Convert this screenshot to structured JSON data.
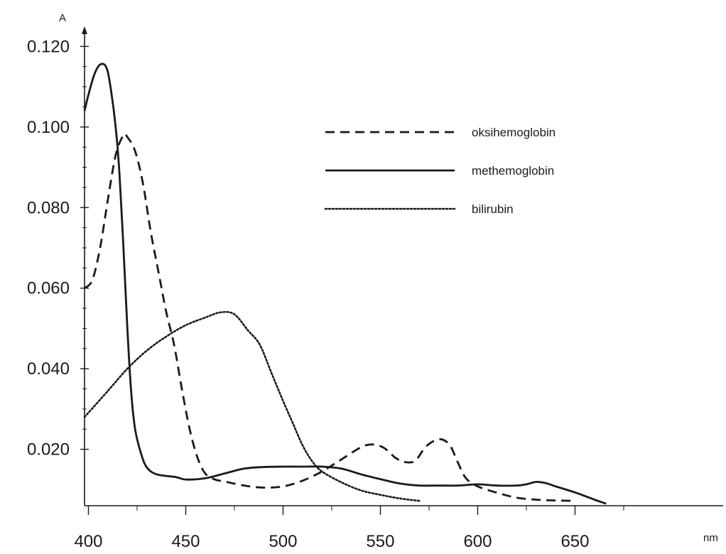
{
  "chart_data": {
    "type": "line",
    "title": "",
    "xlabel": "nm",
    "ylabel": "A",
    "xlim": [
      398,
      698
    ],
    "ylim": [
      0.006,
      0.125
    ],
    "x_ticks": [
      "400",
      "450",
      "500",
      "550",
      "600",
      "650"
    ],
    "y_ticks": [
      "0.020",
      "0.040",
      "0.060",
      "0.080",
      "0.100",
      "0.120"
    ],
    "grid": false,
    "legend_position": "top-right",
    "series": [
      {
        "name": "oksihemoglobin",
        "style": "dashed",
        "color": "#1a1a1a",
        "points": [
          [
            398,
            0.06
          ],
          [
            402,
            0.062
          ],
          [
            406,
            0.07
          ],
          [
            410,
            0.082
          ],
          [
            414,
            0.093
          ],
          [
            418,
            0.098
          ],
          [
            420,
            0.0975
          ],
          [
            424,
            0.094
          ],
          [
            428,
            0.086
          ],
          [
            432,
            0.074
          ],
          [
            436,
            0.064
          ],
          [
            440,
            0.054
          ],
          [
            444,
            0.046
          ],
          [
            448,
            0.035
          ],
          [
            452,
            0.025
          ],
          [
            456,
            0.018
          ],
          [
            460,
            0.014
          ],
          [
            465,
            0.0125
          ],
          [
            470,
            0.012
          ],
          [
            480,
            0.011
          ],
          [
            490,
            0.0105
          ],
          [
            500,
            0.0108
          ],
          [
            510,
            0.0122
          ],
          [
            520,
            0.0145
          ],
          [
            530,
            0.0175
          ],
          [
            540,
            0.0205
          ],
          [
            546,
            0.0212
          ],
          [
            552,
            0.0203
          ],
          [
            558,
            0.0178
          ],
          [
            563,
            0.0168
          ],
          [
            568,
            0.0172
          ],
          [
            573,
            0.0205
          ],
          [
            578,
            0.0222
          ],
          [
            582,
            0.0224
          ],
          [
            586,
            0.0208
          ],
          [
            590,
            0.0165
          ],
          [
            594,
            0.0128
          ],
          [
            600,
            0.0108
          ],
          [
            610,
            0.0092
          ],
          [
            620,
            0.008
          ],
          [
            630,
            0.0075
          ],
          [
            640,
            0.0073
          ],
          [
            650,
            0.0072
          ]
        ]
      },
      {
        "name": "methemoglobin",
        "style": "solid",
        "color": "#1a1a1a",
        "points": [
          [
            398,
            0.104
          ],
          [
            400,
            0.108
          ],
          [
            403,
            0.113
          ],
          [
            406,
            0.1155
          ],
          [
            409,
            0.115
          ],
          [
            411,
            0.111
          ],
          [
            414,
            0.1
          ],
          [
            416,
            0.088
          ],
          [
            418,
            0.07
          ],
          [
            420,
            0.05
          ],
          [
            422,
            0.034
          ],
          [
            424,
            0.025
          ],
          [
            427,
            0.019
          ],
          [
            430,
            0.0155
          ],
          [
            435,
            0.0138
          ],
          [
            445,
            0.0131
          ],
          [
            450,
            0.0125
          ],
          [
            460,
            0.0128
          ],
          [
            470,
            0.014
          ],
          [
            480,
            0.0152
          ],
          [
            490,
            0.0156
          ],
          [
            500,
            0.0157
          ],
          [
            510,
            0.0157
          ],
          [
            520,
            0.0157
          ],
          [
            530,
            0.0152
          ],
          [
            540,
            0.0138
          ],
          [
            550,
            0.0126
          ],
          [
            560,
            0.0115
          ],
          [
            570,
            0.011
          ],
          [
            580,
            0.011
          ],
          [
            590,
            0.011
          ],
          [
            600,
            0.0113
          ],
          [
            610,
            0.011
          ],
          [
            620,
            0.011
          ],
          [
            625,
            0.0113
          ],
          [
            630,
            0.0119
          ],
          [
            635,
            0.0116
          ],
          [
            640,
            0.0108
          ],
          [
            650,
            0.0093
          ],
          [
            660,
            0.0075
          ],
          [
            666,
            0.0065
          ]
        ]
      },
      {
        "name": "bilirubin",
        "style": "dotted",
        "color": "#1a1a1a",
        "points": [
          [
            398,
            0.028
          ],
          [
            410,
            0.0345
          ],
          [
            420,
            0.04
          ],
          [
            430,
            0.0445
          ],
          [
            440,
            0.048
          ],
          [
            450,
            0.0508
          ],
          [
            460,
            0.0527
          ],
          [
            468,
            0.054
          ],
          [
            475,
            0.0535
          ],
          [
            482,
            0.0495
          ],
          [
            488,
            0.046
          ],
          [
            494,
            0.039
          ],
          [
            500,
            0.032
          ],
          [
            505,
            0.0265
          ],
          [
            510,
            0.021
          ],
          [
            515,
            0.017
          ],
          [
            520,
            0.0145
          ],
          [
            530,
            0.0118
          ],
          [
            540,
            0.0098
          ],
          [
            550,
            0.0087
          ],
          [
            560,
            0.0078
          ],
          [
            570,
            0.0072
          ]
        ]
      }
    ]
  }
}
